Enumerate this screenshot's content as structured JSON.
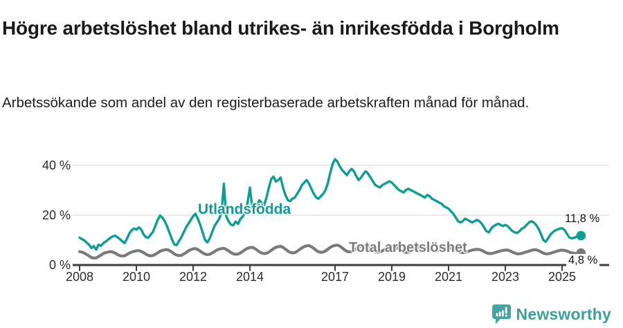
{
  "title": "Högre arbetslöshet bland utrikes- än inrikesfödda i Borgholm",
  "subtitle": "Arbetssökande som andel av den registerbaserade arbetskraften månad för månad.",
  "footer": {
    "brand": "Newsworthy"
  },
  "colors": {
    "accent_teal": "#0e9d95",
    "line_gray": "#7a7a7a",
    "grid": "#e3e3e3",
    "axis": "#3d3d3d",
    "text": "#1a1a1a",
    "brand_teal": "#3f9e9c"
  },
  "chart_data": {
    "type": "line",
    "title": "Högre arbetslöshet bland utrikes- än inrikesfödda i Borgholm",
    "subtitle": "Arbetssökande som andel av den registerbaserade arbetskraften månad för månad.",
    "x_start_year": 2008,
    "x_months_per_point": 1,
    "x_ticks": [
      2008,
      2010,
      2012,
      2014,
      2017,
      2019,
      2021,
      2023,
      2025
    ],
    "y_ticks": [
      0,
      20,
      40
    ],
    "y_tick_suffix": " %",
    "ylim": [
      0,
      44
    ],
    "grid": "horizontal",
    "legend_position": "inline-labels",
    "series": [
      {
        "name": "Utlandsfödda",
        "color": "#0e9d95",
        "end_label": "11,8 %",
        "end_value": 11.8,
        "values": [
          11.0,
          10.4,
          9.9,
          9.0,
          8.1,
          6.8,
          7.6,
          6.2,
          8.2,
          7.7,
          8.8,
          9.4,
          10.2,
          10.9,
          11.5,
          11.8,
          11.2,
          10.4,
          9.6,
          8.8,
          10.5,
          12.6,
          14.0,
          14.7,
          14.2,
          15.1,
          14.4,
          12.4,
          11.2,
          11.0,
          12.1,
          13.3,
          15.6,
          18.1,
          19.9,
          19.0,
          17.6,
          15.5,
          13.0,
          10.4,
          8.3,
          8.0,
          9.6,
          11.1,
          13.1,
          15.1,
          16.6,
          18.1,
          19.6,
          20.6,
          18.6,
          16.1,
          13.1,
          10.1,
          9.1,
          10.6,
          13.1,
          15.6,
          17.1,
          18.6,
          21.0,
          32.6,
          19.5,
          17.5,
          16.2,
          16.0,
          17.5,
          16.5,
          18.5,
          19.5,
          21.5,
          25.0,
          31.1,
          23.0,
          21.5,
          24.0,
          26.0,
          25.0,
          24.0,
          27.0,
          31.0,
          34.5,
          35.5,
          33.5,
          34.1,
          35.1,
          31.1,
          28.1,
          26.1,
          25.6,
          26.6,
          27.1,
          28.6,
          30.1,
          32.1,
          33.1,
          34.1,
          32.6,
          30.6,
          28.6,
          27.1,
          26.6,
          27.6,
          28.6,
          30.1,
          33.1,
          37.1,
          40.6,
          42.5,
          41.5,
          39.6,
          38.1,
          37.1,
          36.1,
          37.6,
          38.6,
          37.6,
          35.6,
          34.1,
          35.1,
          36.6,
          37.6,
          36.6,
          35.1,
          33.6,
          32.1,
          31.6,
          31.1,
          32.1,
          32.6,
          33.1,
          33.6,
          33.1,
          32.1,
          31.1,
          30.1,
          29.6,
          29.1,
          30.1,
          30.6,
          30.1,
          29.6,
          29.1,
          28.6,
          28.1,
          27.6,
          27.1,
          28.1,
          27.6,
          26.6,
          26.1,
          25.6,
          25.1,
          24.6,
          23.6,
          23.1,
          22.6,
          21.6,
          20.6,
          19.1,
          17.6,
          17.1,
          17.6,
          18.6,
          18.1,
          17.6,
          17.1,
          17.6,
          18.1,
          17.6,
          16.6,
          15.1,
          13.6,
          13.1,
          14.6,
          15.6,
          16.1,
          16.6,
          16.1,
          15.6,
          16.1,
          15.6,
          14.6,
          13.6,
          13.1,
          12.9,
          13.6,
          14.6,
          15.1,
          16.1,
          17.1,
          17.6,
          17.1,
          16.1,
          14.6,
          12.6,
          10.1,
          9.3,
          10.6,
          12.1,
          13.1,
          13.9,
          14.3,
          14.6,
          14.8,
          14.1,
          12.6,
          11.1,
          10.7,
          10.9,
          11.3,
          11.0,
          11.8
        ]
      },
      {
        "name": "Total arbetslöshet",
        "color": "#7a7a7a",
        "end_label": "4,8 %",
        "end_value": 4.8,
        "values": [
          5.4,
          5.2,
          4.8,
          4.2,
          3.6,
          3.0,
          2.8,
          2.9,
          3.4,
          4.0,
          4.6,
          5.0,
          5.2,
          5.4,
          5.2,
          4.8,
          4.2,
          3.8,
          3.6,
          3.7,
          4.2,
          4.8,
          5.2,
          5.5,
          5.7,
          5.8,
          5.5,
          5.0,
          4.4,
          3.9,
          3.7,
          3.8,
          4.3,
          4.9,
          5.5,
          5.9,
          6.1,
          6.2,
          5.8,
          5.2,
          4.5,
          4.0,
          3.8,
          3.9,
          4.4,
          5.0,
          5.7,
          6.2,
          6.5,
          6.6,
          6.2,
          5.6,
          4.9,
          4.4,
          4.2,
          4.3,
          4.8,
          5.4,
          6.0,
          6.4,
          6.6,
          6.7,
          6.3,
          5.7,
          5.0,
          4.5,
          4.3,
          4.4,
          4.9,
          5.5,
          6.2,
          6.7,
          7.0,
          7.1,
          6.7,
          6.0,
          5.3,
          4.8,
          4.6,
          4.7,
          5.2,
          5.9,
          6.6,
          7.1,
          7.4,
          7.5,
          7.1,
          6.4,
          5.6,
          5.1,
          4.9,
          5.0,
          5.5,
          6.2,
          6.9,
          7.4,
          7.7,
          7.8,
          7.4,
          6.7,
          5.9,
          5.3,
          5.1,
          5.2,
          5.7,
          6.4,
          7.1,
          7.6,
          7.9,
          8.0,
          7.6,
          6.9,
          6.1,
          5.5,
          5.3,
          5.4,
          5.9,
          6.5,
          7.1,
          7.5,
          7.7,
          7.8,
          7.4,
          6.7,
          6.0,
          5.4,
          5.2,
          5.3,
          5.7,
          6.2,
          6.8,
          7.2,
          7.4,
          7.5,
          7.1,
          6.5,
          5.8,
          5.3,
          5.1,
          5.2,
          5.6,
          6.1,
          6.6,
          7.0,
          7.2,
          7.2,
          6.9,
          6.7,
          6.3,
          5.9,
          5.7,
          5.7,
          5.9,
          6.2,
          6.5,
          6.7,
          6.8,
          6.8,
          6.5,
          6.0,
          5.5,
          5.1,
          5.0,
          5.1,
          5.4,
          5.7,
          6.0,
          6.2,
          6.3,
          6.2,
          5.9,
          5.4,
          4.9,
          4.6,
          4.6,
          4.8,
          5.1,
          5.4,
          5.7,
          5.9,
          6.0,
          6.0,
          5.7,
          5.2,
          4.8,
          4.5,
          4.5,
          4.7,
          5.0,
          5.3,
          5.6,
          5.9,
          6.1,
          6.1,
          5.8,
          5.3,
          4.8,
          4.5,
          4.5,
          4.7,
          5.0,
          5.3,
          5.6,
          5.9,
          6.0,
          5.9,
          5.6,
          5.2,
          4.9,
          4.7,
          4.6,
          4.7,
          4.8
        ]
      }
    ]
  }
}
